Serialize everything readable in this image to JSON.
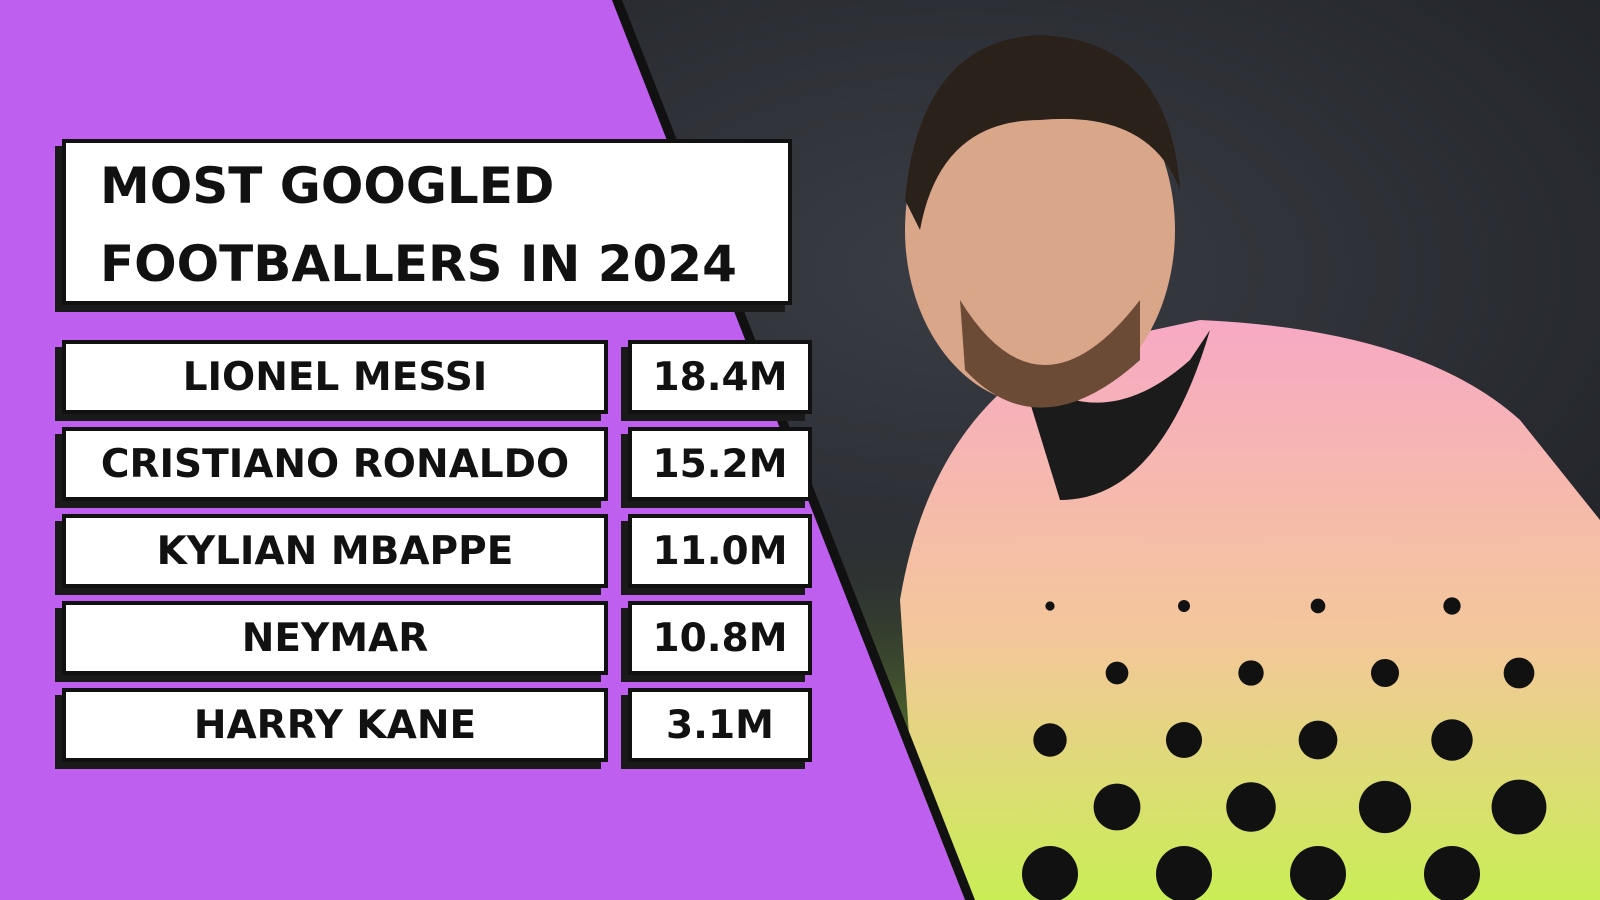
{
  "title": [
    "MOST GOOGLED",
    "FOOTBALLERS IN 2024"
  ],
  "rows": [
    [
      "LIONEL MESSI",
      "18.4M"
    ],
    [
      "CRISTIANO RONALDO",
      "15.2M"
    ],
    [
      "KYLIAN MBAPPE",
      "11.0M"
    ],
    [
      "NEYMAR",
      "10.8M"
    ],
    [
      "HARRY KANE",
      "3.1M"
    ]
  ]
}
